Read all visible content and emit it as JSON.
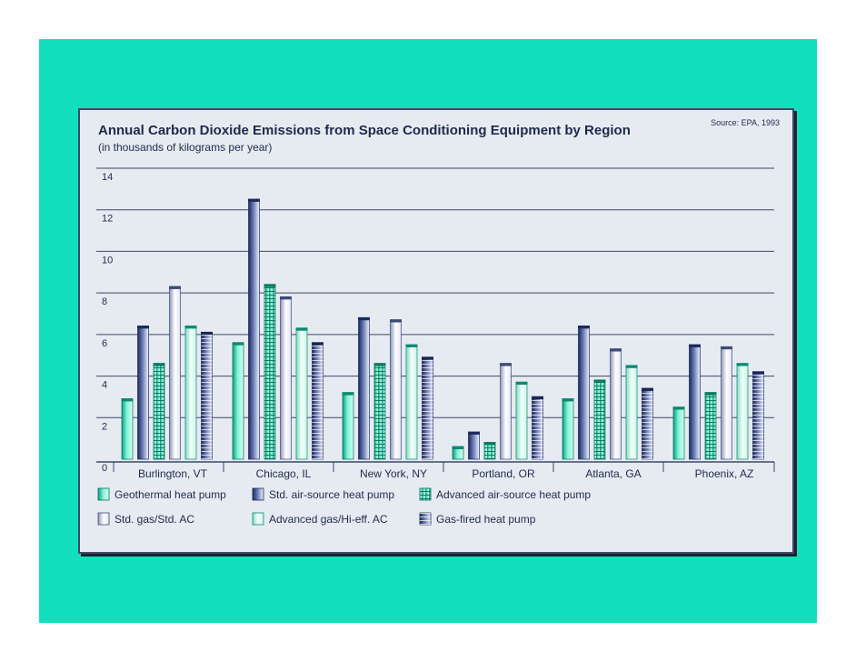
{
  "chart_data": {
    "type": "bar",
    "title": "Annual Carbon Dioxide Emissions from Space Conditioning Equipment by Region",
    "subtitle": "(in thousands of kilograms per year)",
    "source": "Source: EPA, 1993",
    "ylim": [
      0,
      14
    ],
    "yticks": [
      "0",
      "2",
      "4",
      "6",
      "8",
      "10",
      "12",
      "14"
    ],
    "grid": true,
    "legend_position": "bottom",
    "categories": [
      "Burlington, VT",
      "Chicago, IL",
      "New York, NY",
      "Portland, OR",
      "Atlanta, GA",
      "Phoenix, AZ"
    ],
    "series": [
      {
        "name": "Geothermal heat pump",
        "style": "geo",
        "values": [
          2.8,
          5.5,
          3.1,
          0.5,
          2.8,
          2.4
        ]
      },
      {
        "name": "Std. air-source heat pump",
        "style": "stdair",
        "values": [
          6.3,
          12.4,
          6.7,
          1.2,
          6.3,
          5.4
        ]
      },
      {
        "name": "Advanced air-source heat pump",
        "style": "advair",
        "values": [
          4.5,
          8.3,
          4.5,
          0.7,
          3.7,
          3.1
        ]
      },
      {
        "name": "Std. gas/Std. AC",
        "style": "stdgas",
        "values": [
          8.2,
          7.7,
          6.6,
          4.5,
          5.2,
          5.3
        ]
      },
      {
        "name": "Advanced gas/Hi-eff. AC",
        "style": "advgas",
        "values": [
          6.3,
          6.2,
          5.4,
          3.6,
          4.4,
          4.5
        ]
      },
      {
        "name": "Gas-fired heat pump",
        "style": "gasfired",
        "values": [
          6.0,
          5.5,
          4.8,
          2.9,
          3.3,
          4.1
        ]
      }
    ]
  },
  "colors": {
    "background": "#14dfbd",
    "panel": "#e6ebf2",
    "grid": "#3c4a66",
    "text": "#1e2a4a"
  }
}
